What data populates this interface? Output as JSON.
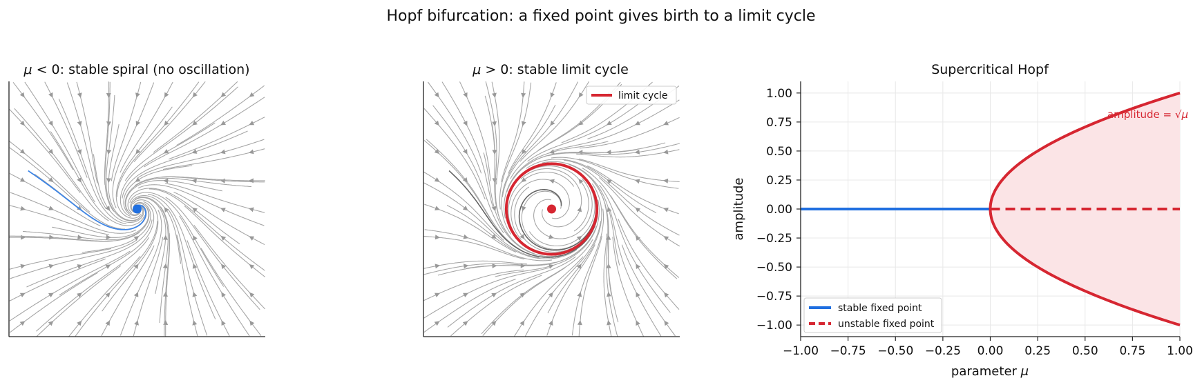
{
  "figure": {
    "suptitle": "Hopf bifurcation: a fixed point gives birth to a limit cycle"
  },
  "colors": {
    "stable": "#1f6fe0",
    "unstable": "#d62631",
    "fill": "#fbe4e6",
    "stream": "#a6a6a6",
    "trajectory_left": "#3f86e6",
    "trajectory_mid": "#666666",
    "axis": "#222222",
    "grid": "#e8e8e8"
  },
  "panels": {
    "left": {
      "title_mu": "μ",
      "title_rest": " < 0: stable spiral (no oscillation)"
    },
    "middle": {
      "title_mu": "μ",
      "title_rest": " > 0: stable limit cycle",
      "legend": [
        "limit cycle"
      ]
    },
    "right": {
      "title": "Supercritical Hopf",
      "xlabel_text": "parameter ",
      "xlabel_mu": "μ",
      "ylabel": "amplitude",
      "annotation_text": "amplitude = ",
      "annotation_math": "√μ",
      "legend": [
        "stable fixed point",
        "unstable fixed point"
      ]
    }
  },
  "chart_data": [
    {
      "type": "streamplot",
      "title": "μ < 0: stable spiral (no oscillation)",
      "system": {
        "mu": -0.5,
        "omega": 1
      },
      "xlim": [
        -2,
        2
      ],
      "ylim": [
        -2,
        2
      ],
      "fixed_point": [
        0,
        0
      ],
      "fixed_point_color": "#1f6fe0",
      "trajectory_start": [
        -1.7,
        0.6
      ]
    },
    {
      "type": "streamplot",
      "title": "μ > 0: stable limit cycle",
      "system": {
        "mu": 0.5,
        "omega": 1
      },
      "xlim": [
        -2,
        2
      ],
      "ylim": [
        -2,
        2
      ],
      "fixed_point": [
        0,
        0
      ],
      "fixed_point_color": "#d62631",
      "limit_cycle_radius": 0.707,
      "trajectory_starts": [
        [
          -1.6,
          0.6
        ],
        [
          0.15,
          0.05
        ]
      ],
      "legend": [
        "limit cycle"
      ]
    },
    {
      "type": "line",
      "title": "Supercritical Hopf",
      "xlabel": "parameter μ",
      "ylabel": "amplitude",
      "xlim": [
        -1,
        1
      ],
      "ylim": [
        -1.1,
        1.1
      ],
      "xticks": [
        "−1.00",
        "−0.75",
        "−0.50",
        "−0.25",
        "0.00",
        "0.25",
        "0.50",
        "0.75",
        "1.00"
      ],
      "xtick_values": [
        -1,
        -0.75,
        -0.5,
        -0.25,
        0,
        0.25,
        0.5,
        0.75,
        1
      ],
      "yticks": [
        "−1.00",
        "−0.75",
        "−0.50",
        "−0.25",
        "0.00",
        "0.25",
        "0.50",
        "0.75",
        "1.00"
      ],
      "ytick_values": [
        -1,
        -0.75,
        -0.5,
        -0.25,
        0,
        0.25,
        0.5,
        0.75,
        1
      ],
      "grid": true,
      "legend_position": "lower-left",
      "series": [
        {
          "name": "stable fixed point",
          "style": "solid",
          "color": "#1f6fe0",
          "x": [
            -1,
            0
          ],
          "y": [
            0,
            0
          ]
        },
        {
          "name": "unstable fixed point",
          "style": "dashed",
          "color": "#d62631",
          "x": [
            0,
            1
          ],
          "y": [
            0,
            0
          ]
        },
        {
          "style": "solid",
          "color": "#d62631",
          "x": [
            0,
            0.0625,
            0.25,
            0.5625,
            1
          ],
          "y": [
            0,
            0.25,
            0.5,
            0.75,
            1
          ],
          "function": "sqrt(mu)"
        },
        {
          "style": "solid",
          "color": "#d62631",
          "x": [
            0,
            0.0625,
            0.25,
            0.5625,
            1
          ],
          "y": [
            0,
            -0.25,
            -0.5,
            -0.75,
            -1
          ],
          "function": "-sqrt(mu)"
        }
      ],
      "fill_between": {
        "x": [
          0,
          1
        ],
        "upper": "sqrt(mu)",
        "lower": "-sqrt(mu)",
        "color": "#fbe4e6"
      }
    }
  ]
}
